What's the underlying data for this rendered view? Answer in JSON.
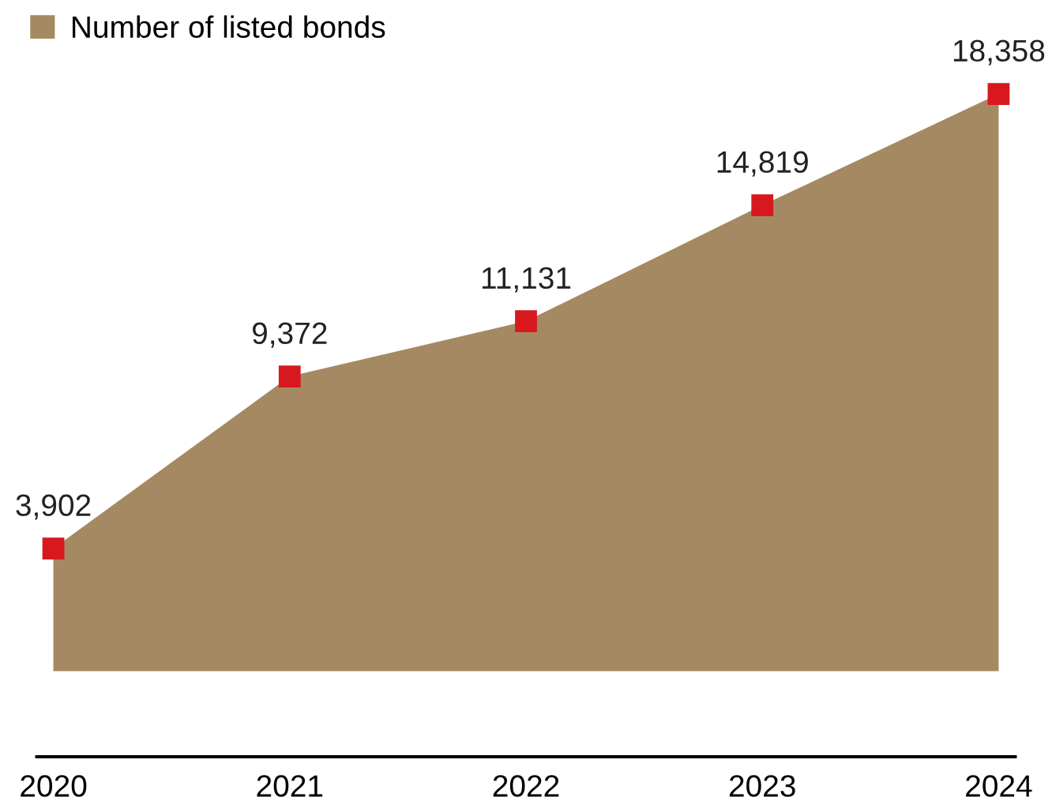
{
  "chart_data": {
    "type": "area",
    "categories": [
      "2020",
      "2021",
      "2022",
      "2023",
      "2024"
    ],
    "series": [
      {
        "name": "Number of listed bonds",
        "color": "#a58962",
        "colors": [
          "#d7191f",
          "#d7191f",
          "#d7191f",
          "#d7191f",
          "#d7191f"
        ],
        "values": [
          3902,
          9372,
          11131,
          14819,
          18358
        ],
        "value_labels": [
          "3,902",
          "9,372",
          "11,131",
          "14,819",
          "18,358"
        ]
      }
    ],
    "marker": "square",
    "legend": "top left",
    "grid": false,
    "tick_labels": "x"
  }
}
